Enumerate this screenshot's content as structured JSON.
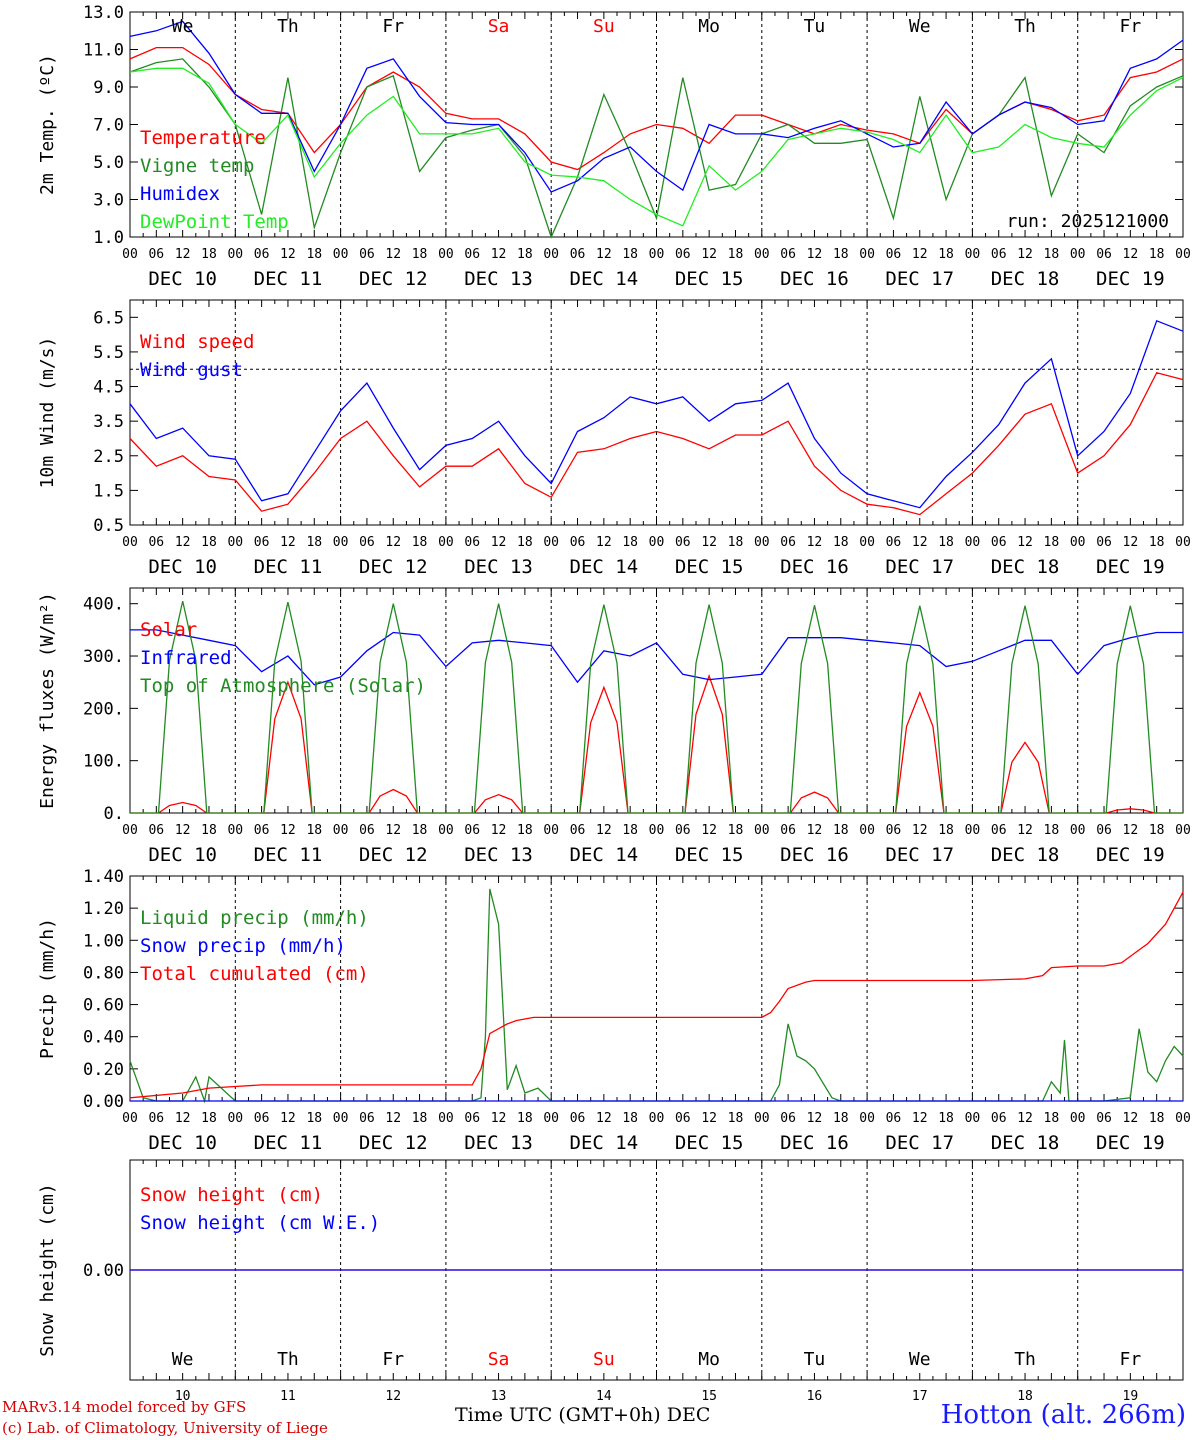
{
  "chart_data": [
    {
      "type": "line",
      "ylabel": "2m Temp. (ºC)",
      "ylim": [
        1.0,
        13.0
      ],
      "yticks": [
        "1.0",
        "3.0",
        "5.0",
        "7.0",
        "9.0",
        "11.0",
        "13.0"
      ],
      "x_unit": "hours since DEC 10 00 UTC",
      "annotation": "run: 2025121000",
      "top_day_labels": [
        "We",
        "Th",
        "Fr",
        "Sa",
        "Su",
        "Mo",
        "Tu",
        "We",
        "Th",
        "Fr"
      ],
      "series": [
        {
          "name": "Temperature",
          "color": "#ff0000",
          "x": [
            0,
            6,
            12,
            18,
            24,
            30,
            36,
            42,
            48,
            54,
            60,
            66,
            72,
            78,
            84,
            90,
            96,
            102,
            108,
            114,
            120,
            126,
            132,
            138,
            144,
            150,
            156,
            162,
            168,
            174,
            180,
            186,
            192,
            198,
            204,
            210,
            216,
            222,
            228,
            234,
            240
          ],
          "values": [
            10.5,
            11.1,
            11.1,
            10.2,
            8.6,
            7.8,
            7.6,
            5.5,
            7.0,
            9.0,
            9.8,
            9.0,
            7.6,
            7.3,
            7.3,
            6.5,
            5.0,
            4.6,
            5.5,
            6.5,
            7.0,
            6.8,
            6.0,
            7.5,
            7.5,
            7.0,
            6.5,
            7.0,
            6.7,
            6.5,
            6.0,
            7.8,
            6.5,
            7.5,
            8.2,
            7.8,
            7.2,
            7.5,
            9.5,
            9.8,
            10.5
          ]
        },
        {
          "name": "Vigne temp",
          "color": "#228b22",
          "x": [
            0,
            6,
            12,
            18,
            24,
            30,
            36,
            42,
            48,
            54,
            60,
            66,
            72,
            78,
            84,
            90,
            96,
            102,
            108,
            114,
            120,
            126,
            132,
            138,
            144,
            150,
            156,
            162,
            168,
            174,
            180,
            186,
            192,
            198,
            204,
            210,
            216,
            222,
            228,
            234,
            240
          ],
          "values": [
            9.8,
            10.3,
            10.5,
            9.0,
            7.0,
            2.2,
            9.5,
            1.5,
            5.5,
            9.0,
            9.6,
            4.5,
            6.3,
            6.7,
            7.0,
            5.3,
            1.0,
            4.2,
            8.6,
            5.5,
            2.0,
            9.5,
            3.5,
            3.8,
            6.5,
            7.0,
            6.0,
            6.0,
            6.2,
            2.0,
            8.5,
            3.0,
            6.5,
            7.5,
            9.5,
            3.2,
            6.5,
            5.5,
            8.0,
            9.0,
            9.6
          ]
        },
        {
          "name": "Humidex",
          "color": "#0000ff",
          "x": [
            0,
            6,
            12,
            18,
            24,
            30,
            36,
            42,
            48,
            54,
            60,
            66,
            72,
            78,
            84,
            90,
            96,
            102,
            108,
            114,
            120,
            126,
            132,
            138,
            144,
            150,
            156,
            162,
            168,
            174,
            180,
            186,
            192,
            198,
            204,
            210,
            216,
            222,
            228,
            234,
            240
          ],
          "values": [
            11.7,
            12.0,
            12.5,
            10.8,
            8.6,
            7.6,
            7.6,
            4.5,
            7.0,
            10.0,
            10.5,
            8.5,
            7.1,
            7.0,
            7.0,
            5.5,
            3.4,
            4.0,
            5.2,
            5.8,
            4.5,
            3.5,
            7.0,
            6.5,
            6.5,
            6.3,
            6.8,
            7.2,
            6.5,
            5.8,
            6.0,
            8.2,
            6.5,
            7.5,
            8.2,
            7.9,
            7.0,
            7.2,
            10.0,
            10.5,
            11.5
          ]
        },
        {
          "name": "DewPoint Temp",
          "color": "#22ee22",
          "x": [
            0,
            6,
            12,
            18,
            24,
            30,
            36,
            42,
            48,
            54,
            60,
            66,
            72,
            78,
            84,
            90,
            96,
            102,
            108,
            114,
            120,
            126,
            132,
            138,
            144,
            150,
            156,
            162,
            168,
            174,
            180,
            186,
            192,
            198,
            204,
            210,
            216,
            222,
            228,
            234,
            240
          ],
          "values": [
            9.8,
            10.0,
            10.0,
            9.2,
            7.0,
            6.0,
            7.5,
            4.2,
            6.0,
            7.5,
            8.5,
            6.5,
            6.5,
            6.5,
            6.8,
            5.0,
            4.3,
            4.2,
            4.0,
            3.0,
            2.2,
            1.6,
            4.8,
            3.5,
            4.5,
            6.2,
            6.5,
            6.8,
            6.6,
            6.2,
            5.5,
            7.5,
            5.5,
            5.8,
            7.0,
            6.3,
            6.0,
            5.8,
            7.5,
            8.8,
            9.5
          ]
        }
      ]
    },
    {
      "type": "line",
      "ylabel": "10m Wind (m/s)",
      "ylim": [
        0.5,
        7.0
      ],
      "yticks": [
        "0.5",
        "1.5",
        "2.5",
        "3.5",
        "4.5",
        "5.5",
        "6.5"
      ],
      "reference_line": 5.0,
      "series": [
        {
          "name": "Wind speed",
          "color": "#ff0000",
          "x": [
            0,
            6,
            12,
            18,
            24,
            30,
            36,
            42,
            48,
            54,
            60,
            66,
            72,
            78,
            84,
            90,
            96,
            102,
            108,
            114,
            120,
            126,
            132,
            138,
            144,
            150,
            156,
            162,
            168,
            174,
            180,
            186,
            192,
            198,
            204,
            210,
            216,
            222,
            228,
            234,
            240
          ],
          "values": [
            3.0,
            2.2,
            2.5,
            1.9,
            1.8,
            0.9,
            1.1,
            2.0,
            3.0,
            3.5,
            2.5,
            1.6,
            2.2,
            2.2,
            2.7,
            1.7,
            1.3,
            2.6,
            2.7,
            3.0,
            3.2,
            3.0,
            2.7,
            3.1,
            3.1,
            3.5,
            2.2,
            1.5,
            1.1,
            1.0,
            0.8,
            1.4,
            2.0,
            2.8,
            3.7,
            4.0,
            2.0,
            2.5,
            3.4,
            4.9,
            4.7
          ]
        },
        {
          "name": "Wind gust",
          "color": "#0000ff",
          "x": [
            0,
            6,
            12,
            18,
            24,
            30,
            36,
            42,
            48,
            54,
            60,
            66,
            72,
            78,
            84,
            90,
            96,
            102,
            108,
            114,
            120,
            126,
            132,
            138,
            144,
            150,
            156,
            162,
            168,
            174,
            180,
            186,
            192,
            198,
            204,
            210,
            216,
            222,
            228,
            234,
            240
          ],
          "values": [
            4.0,
            3.0,
            3.3,
            2.5,
            2.4,
            1.2,
            1.4,
            2.6,
            3.8,
            4.6,
            3.3,
            2.1,
            2.8,
            3.0,
            3.5,
            2.5,
            1.7,
            3.2,
            3.6,
            4.2,
            4.0,
            4.2,
            3.5,
            4.0,
            4.1,
            4.6,
            3.0,
            2.0,
            1.4,
            1.2,
            1.0,
            1.9,
            2.6,
            3.4,
            4.6,
            5.3,
            2.5,
            3.2,
            4.3,
            6.4,
            6.1
          ]
        }
      ]
    },
    {
      "type": "line",
      "ylabel": "Energy fluxes (W/m²)",
      "ylim": [
        0,
        430
      ],
      "yticks": [
        "0.",
        "100.",
        "200.",
        "300.",
        "400."
      ],
      "series": [
        {
          "name": "Solar",
          "color": "#ff0000",
          "peaks": [
            {
              "hour": 12,
              "value": 20
            },
            {
              "hour": 36,
              "value": 250
            },
            {
              "hour": 60,
              "value": 45
            },
            {
              "hour": 84,
              "value": 35
            },
            {
              "hour": 108,
              "value": 240
            },
            {
              "hour": 132,
              "value": 262
            },
            {
              "hour": 156,
              "value": 40
            },
            {
              "hour": 180,
              "value": 230
            },
            {
              "hour": 204,
              "value": 135
            },
            {
              "hour": 228,
              "value": 8
            }
          ]
        },
        {
          "name": "Infrared",
          "color": "#0000ff",
          "x": [
            0,
            6,
            12,
            18,
            24,
            30,
            36,
            42,
            48,
            54,
            60,
            66,
            72,
            78,
            84,
            90,
            96,
            102,
            108,
            114,
            120,
            126,
            132,
            138,
            144,
            150,
            156,
            162,
            168,
            174,
            180,
            186,
            192,
            198,
            204,
            210,
            216,
            222,
            228,
            234,
            240
          ],
          "values": [
            350,
            350,
            340,
            330,
            320,
            270,
            300,
            245,
            260,
            310,
            345,
            340,
            280,
            325,
            330,
            325,
            320,
            250,
            310,
            300,
            325,
            265,
            255,
            260,
            265,
            335,
            335,
            335,
            330,
            325,
            320,
            280,
            290,
            310,
            330,
            330,
            265,
            320,
            335,
            345,
            345
          ]
        },
        {
          "name": "Top of Atmosphere (Solar)",
          "color": "#228b22",
          "peaks": [
            {
              "hour": 12,
              "value": 405
            },
            {
              "hour": 36,
              "value": 403
            },
            {
              "hour": 60,
              "value": 400
            },
            {
              "hour": 84,
              "value": 400
            },
            {
              "hour": 108,
              "value": 398
            },
            {
              "hour": 132,
              "value": 398
            },
            {
              "hour": 156,
              "value": 397
            },
            {
              "hour": 180,
              "value": 396
            },
            {
              "hour": 204,
              "value": 396
            },
            {
              "hour": 228,
              "value": 396
            }
          ]
        }
      ]
    },
    {
      "type": "line",
      "ylabel": "Precip (mm/h)",
      "ylim": [
        0.0,
        1.4
      ],
      "yticks": [
        "0.00",
        "0.20",
        "0.40",
        "0.60",
        "0.80",
        "1.00",
        "1.20",
        "1.40"
      ],
      "series": [
        {
          "name": "Liquid precip (mm/h)",
          "color": "#228b22",
          "x": [
            0,
            3,
            6,
            12,
            15,
            17,
            18,
            24,
            30,
            78,
            80,
            81,
            82,
            84,
            86,
            88,
            90,
            93,
            96,
            100,
            146,
            148,
            150,
            152,
            154,
            156,
            160,
            162,
            208,
            210,
            212,
            213,
            214,
            216,
            222,
            228,
            230,
            232,
            234,
            236,
            238,
            240
          ],
          "values": [
            0.25,
            0.02,
            0.0,
            0.0,
            0.15,
            0.0,
            0.15,
            0.0,
            0.0,
            0.0,
            0.02,
            0.4,
            1.32,
            1.1,
            0.07,
            0.22,
            0.05,
            0.08,
            0.0,
            0.0,
            0.0,
            0.1,
            0.48,
            0.28,
            0.25,
            0.2,
            0.02,
            0.0,
            0.0,
            0.12,
            0.05,
            0.38,
            0.0,
            0.0,
            0.0,
            0.02,
            0.45,
            0.18,
            0.12,
            0.25,
            0.34,
            0.28
          ]
        },
        {
          "name": "Snow precip (mm/h)",
          "color": "#0000ff",
          "x": [
            0,
            240
          ],
          "values": [
            0.0,
            0.0
          ]
        },
        {
          "name": "Total cumulated (cm)",
          "color": "#ff0000",
          "x": [
            0,
            12,
            18,
            24,
            30,
            78,
            80,
            82,
            84,
            86,
            88,
            92,
            96,
            120,
            144,
            146,
            148,
            150,
            154,
            156,
            160,
            168,
            192,
            204,
            208,
            210,
            216,
            222,
            226,
            228,
            232,
            236,
            240
          ],
          "values": [
            0.02,
            0.05,
            0.08,
            0.09,
            0.1,
            0.1,
            0.2,
            0.42,
            0.45,
            0.48,
            0.5,
            0.52,
            0.52,
            0.52,
            0.52,
            0.55,
            0.62,
            0.7,
            0.74,
            0.75,
            0.75,
            0.75,
            0.75,
            0.76,
            0.78,
            0.83,
            0.84,
            0.84,
            0.86,
            0.9,
            0.98,
            1.1,
            1.3
          ]
        }
      ]
    },
    {
      "type": "line",
      "ylabel": "Snow height (cm)",
      "ylim": [
        -1,
        1
      ],
      "yticks": [
        "0.00"
      ],
      "series": [
        {
          "name": "Snow height (cm)",
          "color": "#ff0000",
          "x": [
            0,
            240
          ],
          "values": [
            0.0,
            0.0
          ]
        },
        {
          "name": "Snow height (cm W.E.)",
          "color": "#0000ff",
          "x": [
            0,
            240
          ],
          "values": [
            0.0,
            0.0
          ]
        }
      ]
    }
  ],
  "axis": {
    "hour_ticks": [
      "00",
      "06",
      "12",
      "18"
    ],
    "end_tick": "00",
    "date_labels": [
      "DEC 10",
      "DEC 11",
      "DEC 12",
      "DEC 13",
      "DEC 14",
      "DEC 15",
      "DEC 16",
      "DEC 17",
      "DEC 18",
      "DEC 19"
    ],
    "bottom_day_labels": [
      "We",
      "Th",
      "Fr",
      "Sa",
      "Su",
      "Mo",
      "Tu",
      "We",
      "Th",
      "Fr"
    ],
    "bottom_date_numbers": [
      "10",
      "11",
      "12",
      "13",
      "14",
      "15",
      "16",
      "17",
      "18",
      "19"
    ],
    "weekend_color": "#ff0000",
    "weekend_days": [
      "Sa",
      "Su"
    ],
    "time_title": "Time UTC (GMT+0h)",
    "time_title_month": "DEC"
  },
  "footer": {
    "model_line": "MARv3.14 model forced by GFS",
    "credit_line": "(c) Lab. of Climatology, University of Liege",
    "station": "Hotton (alt. 266m)"
  }
}
